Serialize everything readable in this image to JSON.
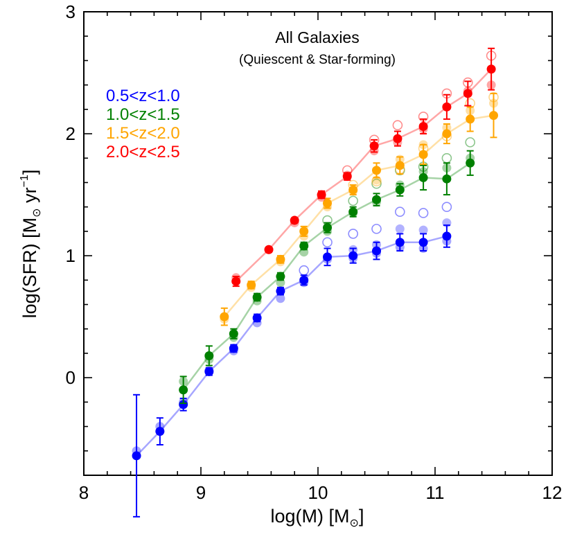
{
  "chart_data": {
    "type": "scatter",
    "title": "All Galaxies",
    "subtitle": "(Quiescent & Star-forming)",
    "xlabel": "log(M)",
    "xlabel_unit": "M",
    "xlabel_unit_sub": "⊙",
    "ylabel": "log(SFR)",
    "ylabel_unit": "M",
    "ylabel_unit_sub": "⊙",
    "ylabel_unit_tail": "yr",
    "ylabel_unit_sup": "−1",
    "xlim": [
      8,
      12
    ],
    "ylim": [
      -0.8,
      3
    ],
    "xticks": [
      8,
      9,
      10,
      11,
      12
    ],
    "xtick_labels": [
      "8",
      "9",
      "10",
      "11",
      "12"
    ],
    "yticks": [
      0,
      1,
      2,
      3
    ],
    "ytick_labels": [
      "0",
      "1",
      "2",
      "3"
    ],
    "legend_position": "top-left",
    "series": [
      {
        "name": "0.5<z<1.0",
        "color": "#0000ff",
        "x": [
          8.45,
          8.65,
          8.85,
          9.07,
          9.28,
          9.48,
          9.68,
          9.88,
          10.08,
          10.3,
          10.5,
          10.7,
          10.9,
          11.1
        ],
        "y": [
          -0.64,
          -0.44,
          -0.22,
          0.05,
          0.24,
          0.49,
          0.71,
          0.8,
          0.99,
          1.0,
          1.04,
          1.11,
          1.11,
          1.16
        ],
        "yerr": [
          0.5,
          0.11,
          0.05,
          0.03,
          0.03,
          0.03,
          0.03,
          0.04,
          0.07,
          0.06,
          0.07,
          0.07,
          0.07,
          0.09
        ],
        "faint_filled": [
          -0.6,
          -0.4,
          -0.2,
          0.06,
          0.22,
          0.45,
          0.65,
          0.78,
          0.97,
          0.98,
          1.02,
          1.07,
          1.06,
          1.12
        ],
        "open_x": [
          9.88,
          10.08,
          10.3,
          10.5,
          10.7,
          10.9,
          11.1
        ],
        "open_y": [
          0.88,
          1.11,
          1.18,
          1.22,
          1.36,
          1.35,
          1.4
        ],
        "faint_solid_x": [
          10.3,
          10.5,
          10.7,
          10.9,
          11.1
        ],
        "faint_solid_y": [
          1.05,
          1.09,
          1.22,
          1.21,
          1.27
        ]
      },
      {
        "name": "1.0<z<1.5",
        "color": "#008000",
        "x": [
          8.85,
          9.07,
          9.28,
          9.48,
          9.68,
          9.88,
          10.08,
          10.3,
          10.5,
          10.7,
          10.9,
          11.1,
          11.3
        ],
        "y": [
          -0.1,
          0.18,
          0.36,
          0.66,
          0.83,
          1.08,
          1.23,
          1.36,
          1.46,
          1.54,
          1.64,
          1.63,
          1.76
        ],
        "yerr": [
          0.11,
          0.08,
          0.04,
          0.03,
          0.03,
          0.03,
          0.04,
          0.04,
          0.05,
          0.05,
          0.1,
          0.13,
          0.1
        ],
        "faint_filled": [
          -0.03,
          0.15,
          0.33,
          0.63,
          0.78,
          1.03,
          1.2,
          1.35,
          1.44,
          1.58,
          1.69,
          1.72,
          1.8
        ],
        "open_x": [
          10.08,
          10.3,
          10.5,
          10.7,
          10.9,
          11.1,
          11.3
        ],
        "open_y": [
          1.29,
          1.45,
          1.59,
          1.7,
          1.73,
          1.8,
          1.93
        ],
        "faint_solid_x": [],
        "faint_solid_y": []
      },
      {
        "name": "1.5<z<2.0",
        "color": "#ffa500",
        "x": [
          9.2,
          9.43,
          9.68,
          9.88,
          10.08,
          10.3,
          10.5,
          10.7,
          10.9,
          11.1,
          11.3,
          11.5
        ],
        "y": [
          0.5,
          0.76,
          0.97,
          1.2,
          1.43,
          1.54,
          1.7,
          1.74,
          1.83,
          2.0,
          2.12,
          2.15
        ],
        "yerr": [
          0.07,
          0.03,
          0.03,
          0.04,
          0.04,
          0.04,
          0.06,
          0.07,
          0.08,
          0.08,
          0.1,
          0.18
        ],
        "faint_filled": [
          0.48,
          0.74,
          0.95,
          1.16,
          1.4,
          1.53,
          1.62,
          1.79,
          1.91,
          2.05,
          2.19,
          2.25
        ],
        "open_x": [
          10.3,
          10.5,
          10.7,
          10.9,
          11.1,
          11.3,
          11.5
        ],
        "open_y": [
          1.58,
          1.61,
          1.71,
          1.88,
          1.98,
          2.25,
          2.3
        ],
        "faint_solid_x": [],
        "faint_solid_y": []
      },
      {
        "name": "2.0<z<2.5",
        "color": "#ff0000",
        "x": [
          9.3,
          9.58,
          9.8,
          10.03,
          10.25,
          10.48,
          10.68,
          10.9,
          11.1,
          11.28,
          11.48
        ],
        "y": [
          0.79,
          1.05,
          1.29,
          1.5,
          1.65,
          1.9,
          1.96,
          2.06,
          2.22,
          2.33,
          2.53
        ],
        "yerr": [
          0.04,
          0.02,
          0.02,
          0.03,
          0.03,
          0.05,
          0.06,
          0.06,
          0.1,
          0.1,
          0.17
        ],
        "faint_filled": [
          0.82,
          1.05,
          1.27,
          1.48,
          1.66,
          1.86,
          1.93,
          2.04,
          2.22,
          2.35,
          2.4
        ],
        "open_x": [
          10.25,
          10.48,
          10.68,
          10.9,
          11.1,
          11.28,
          11.48
        ],
        "open_y": [
          1.7,
          1.95,
          2.07,
          2.14,
          2.33,
          2.42,
          2.64
        ],
        "faint_solid_x": [],
        "faint_solid_y": []
      }
    ]
  }
}
